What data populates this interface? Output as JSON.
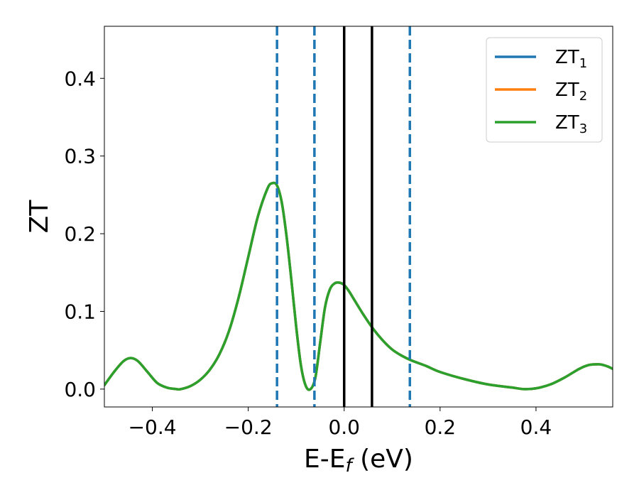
{
  "chart_data": {
    "type": "line",
    "xlabel": {
      "main": "E-E",
      "sub": "f",
      "suffix": " (eV)"
    },
    "ylabel": "ZT",
    "xlim": [
      -0.5,
      0.56
    ],
    "ylim": [
      -0.023,
      0.467
    ],
    "xticks": [
      {
        "value": -0.4,
        "label": "−0.4"
      },
      {
        "value": -0.2,
        "label": "−0.2"
      },
      {
        "value": 0.0,
        "label": "0.0"
      },
      {
        "value": 0.2,
        "label": "0.2"
      },
      {
        "value": 0.4,
        "label": "0.4"
      }
    ],
    "yticks": [
      {
        "value": 0.0,
        "label": "0.0"
      },
      {
        "value": 0.1,
        "label": "0.1"
      },
      {
        "value": 0.2,
        "label": "0.2"
      },
      {
        "value": 0.3,
        "label": "0.3"
      },
      {
        "value": 0.4,
        "label": "0.4"
      }
    ],
    "grid": false,
    "legend_position": "top-right",
    "series": [
      {
        "name": "ZT",
        "sub": "1",
        "color": "#1f77b4"
      },
      {
        "name": "ZT",
        "sub": "2",
        "color": "#ff7f0e"
      },
      {
        "name": "ZT",
        "sub": "3",
        "color": "#2ca02c"
      }
    ],
    "curve": {
      "x": [
        -0.5,
        -0.48,
        -0.46,
        -0.445,
        -0.43,
        -0.41,
        -0.39,
        -0.37,
        -0.35,
        -0.34,
        -0.32,
        -0.3,
        -0.28,
        -0.26,
        -0.24,
        -0.22,
        -0.2,
        -0.18,
        -0.16,
        -0.15,
        -0.14,
        -0.13,
        -0.12,
        -0.11,
        -0.1,
        -0.09,
        -0.08,
        -0.07,
        -0.06,
        -0.05,
        -0.04,
        -0.03,
        -0.02,
        -0.01,
        0.0,
        0.01,
        0.02,
        0.04,
        0.06,
        0.08,
        0.1,
        0.12,
        0.14,
        0.17,
        0.2,
        0.25,
        0.3,
        0.35,
        0.375,
        0.4,
        0.43,
        0.46,
        0.49,
        0.51,
        0.53,
        0.54,
        0.55,
        0.56
      ],
      "y": [
        0.005,
        0.022,
        0.036,
        0.04,
        0.036,
        0.022,
        0.008,
        0.002,
        0.0,
        0.0,
        0.004,
        0.012,
        0.025,
        0.045,
        0.075,
        0.118,
        0.17,
        0.222,
        0.258,
        0.265,
        0.262,
        0.24,
        0.196,
        0.14,
        0.08,
        0.03,
        0.004,
        0.0,
        0.015,
        0.06,
        0.105,
        0.128,
        0.136,
        0.137,
        0.134,
        0.126,
        0.116,
        0.096,
        0.078,
        0.063,
        0.051,
        0.043,
        0.037,
        0.03,
        0.022,
        0.013,
        0.006,
        0.002,
        0.0,
        0.001,
        0.006,
        0.015,
        0.026,
        0.031,
        0.032,
        0.031,
        0.029,
        0.026
      ]
    },
    "vlines_dashed": [
      -0.14,
      -0.062,
      0.137
    ],
    "vlines_dashed_color": "#1f77b4",
    "vlines_solid": [
      0.0,
      0.058
    ],
    "vlines_solid_color": "#000000"
  }
}
